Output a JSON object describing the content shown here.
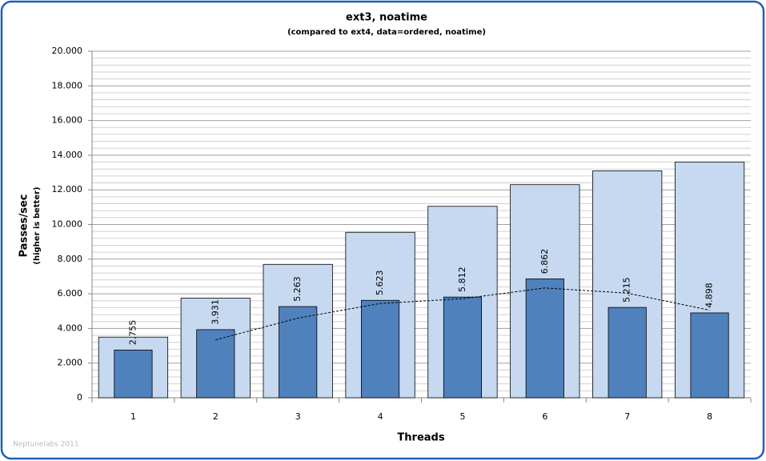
{
  "chart_data": {
    "type": "bar",
    "title": "ext3, noatime",
    "subtitle": "(compared to ext4, data=ordered, noatime)",
    "y_label": "Passes/sec",
    "y_sublabel": "(higher is better)",
    "x_label": "Threads",
    "watermark": "Neptunelabs 2011",
    "categories": [
      "1",
      "2",
      "3",
      "4",
      "5",
      "6",
      "7",
      "8"
    ],
    "series": [
      {
        "values": [
          3500,
          5750,
          7700,
          9550,
          11050,
          12300,
          13100,
          13600
        ],
        "color": "#c6d9f1"
      },
      {
        "values": [
          2755,
          3931,
          5263,
          5623,
          5812,
          6862,
          5215,
          4898
        ],
        "color": "#4f81bd",
        "value_labels": [
          "2.755",
          "3.931",
          "5.263",
          "5.623",
          "5.812",
          "6.862",
          "5.215",
          "4.898"
        ]
      }
    ],
    "trendline": {
      "type": "moving_average",
      "series": 1,
      "period": 2
    },
    "ylim": [
      0,
      20000
    ],
    "yticks": [
      {
        "value": 0,
        "label": "0"
      },
      {
        "value": 2000,
        "label": "2.000"
      },
      {
        "value": 4000,
        "label": "4.000"
      },
      {
        "value": 6000,
        "label": "6.000"
      },
      {
        "value": 8000,
        "label": "8.000"
      },
      {
        "value": 10000,
        "label": "10.000"
      },
      {
        "value": 12000,
        "label": "12.000"
      },
      {
        "value": 14000,
        "label": "14.000"
      },
      {
        "value": 16000,
        "label": "16.000"
      },
      {
        "value": 18000,
        "label": "18.000"
      },
      {
        "value": 20000,
        "label": "20.000"
      }
    ],
    "grid": true
  }
}
